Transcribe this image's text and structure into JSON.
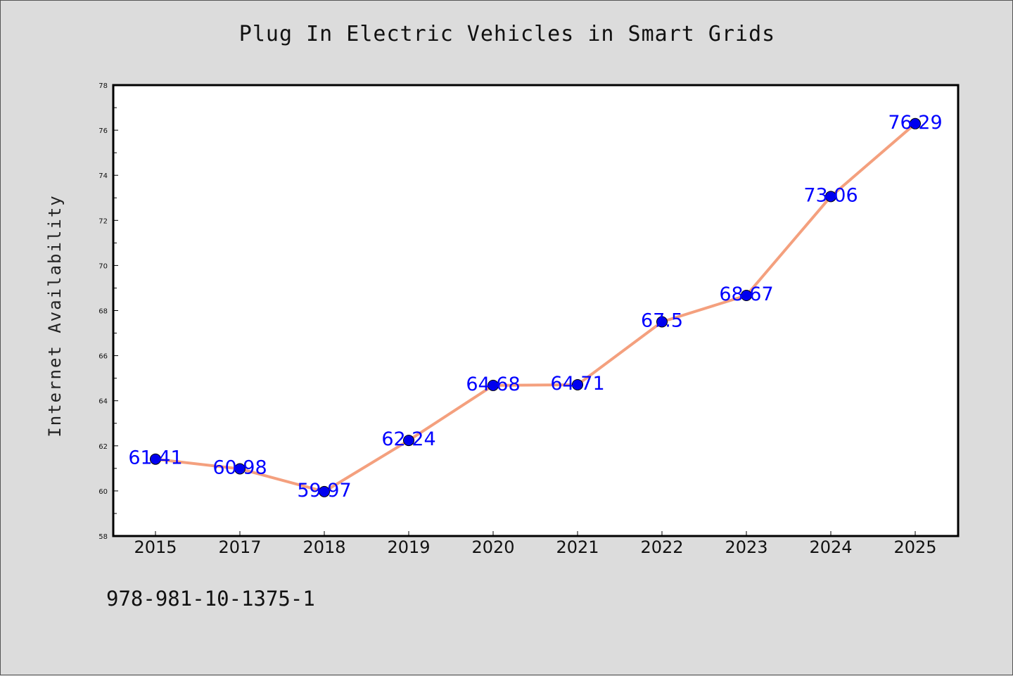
{
  "chart_data": {
    "type": "line",
    "title": "Plug In Electric Vehicles in Smart Grids",
    "xlabel": "",
    "ylabel": "Internet Availability",
    "categories": [
      "2015",
      "2017",
      "2018",
      "2019",
      "2020",
      "2021",
      "2022",
      "2023",
      "2024",
      "2025"
    ],
    "values": [
      61.41,
      60.98,
      59.97,
      62.24,
      64.68,
      64.71,
      67.5,
      68.67,
      73.06,
      76.29
    ],
    "data_labels": [
      "61.41",
      "60.98",
      "59.97",
      "62.24",
      "64.68",
      "64.71",
      "67.5",
      "68.67",
      "73.06",
      "76.29"
    ],
    "ylim": [
      58,
      78
    ],
    "y_ticks": [
      58,
      60,
      62,
      64,
      66,
      68,
      70,
      72,
      74,
      76,
      78
    ],
    "grid": false,
    "legend": "none",
    "line_color": "#f4a07e",
    "marker_color": "#0000ee",
    "label_color": "#0000ff"
  },
  "footer": {
    "identifier": "978-981-10-1375-1"
  }
}
